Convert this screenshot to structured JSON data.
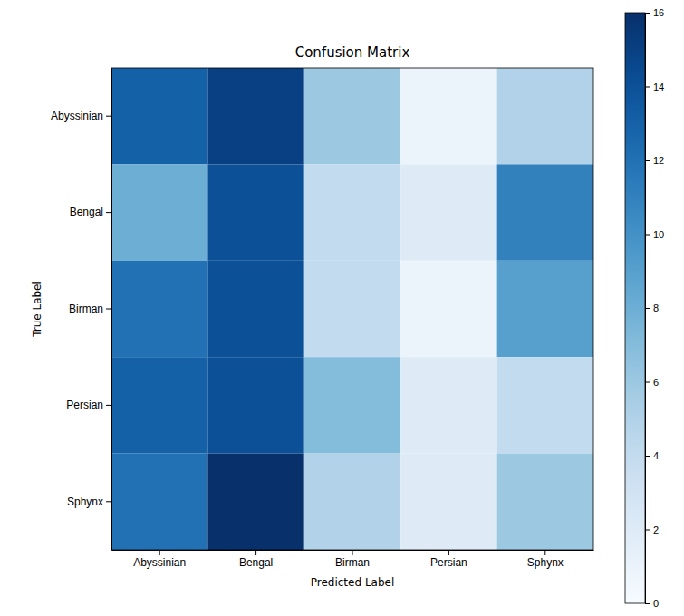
{
  "chart_data": {
    "type": "heatmap",
    "title": "Confusion Matrix",
    "x_label": "Predicted Label",
    "y_label": "True Label",
    "x": [
      "Abyssinian",
      "Bengal",
      "Birman",
      "Persian",
      "Sphynx"
    ],
    "y": [
      "Abyssinian",
      "Bengal",
      "Birman",
      "Persian",
      "Sphynx"
    ],
    "values": [
      [
        13,
        15,
        6,
        1,
        5
      ],
      [
        8,
        14,
        4,
        2,
        11
      ],
      [
        12,
        14,
        4,
        1,
        9
      ],
      [
        13,
        14,
        7,
        2,
        4
      ],
      [
        12,
        16,
        5,
        2,
        6
      ]
    ],
    "zlim": [
      0,
      16
    ],
    "zticks": [
      0,
      2,
      4,
      6,
      8,
      10,
      12,
      14,
      16
    ],
    "color": "Blues"
  }
}
